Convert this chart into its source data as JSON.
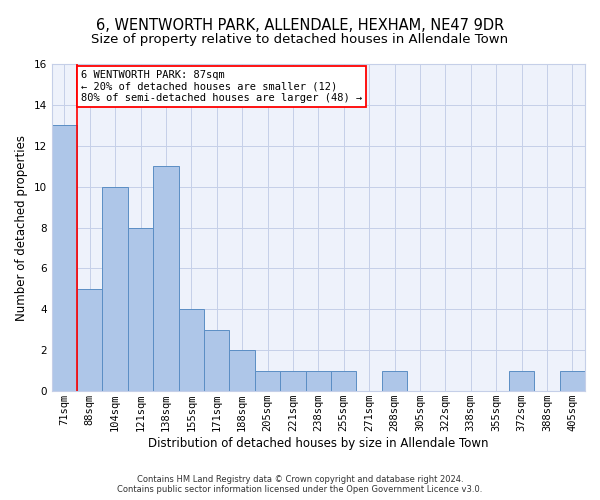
{
  "title1": "6, WENTWORTH PARK, ALLENDALE, HEXHAM, NE47 9DR",
  "title2": "Size of property relative to detached houses in Allendale Town",
  "xlabel": "Distribution of detached houses by size in Allendale Town",
  "ylabel": "Number of detached properties",
  "categories": [
    "71sqm",
    "88sqm",
    "104sqm",
    "121sqm",
    "138sqm",
    "155sqm",
    "171sqm",
    "188sqm",
    "205sqm",
    "221sqm",
    "238sqm",
    "255sqm",
    "271sqm",
    "288sqm",
    "305sqm",
    "322sqm",
    "338sqm",
    "355sqm",
    "372sqm",
    "388sqm",
    "405sqm"
  ],
  "values": [
    13,
    5,
    10,
    8,
    11,
    4,
    3,
    2,
    1,
    1,
    1,
    1,
    0,
    1,
    0,
    0,
    0,
    0,
    1,
    0,
    1
  ],
  "bar_color": "#aec6e8",
  "bar_edge_color": "#5b8ec4",
  "annotation_text": "6 WENTWORTH PARK: 87sqm\n← 20% of detached houses are smaller (12)\n80% of semi-detached houses are larger (48) →",
  "subject_vline_x": 0.5,
  "ylim": [
    0,
    16
  ],
  "yticks": [
    0,
    2,
    4,
    6,
    8,
    10,
    12,
    14,
    16
  ],
  "footer": "Contains HM Land Registry data © Crown copyright and database right 2024.\nContains public sector information licensed under the Open Government Licence v3.0.",
  "background_color": "#eef2fb",
  "grid_color": "#c5cfe8",
  "title1_fontsize": 10.5,
  "title2_fontsize": 9.5,
  "axis_label_fontsize": 8.5,
  "tick_fontsize": 7.5,
  "footer_fontsize": 6,
  "ann_fontsize": 7.5
}
